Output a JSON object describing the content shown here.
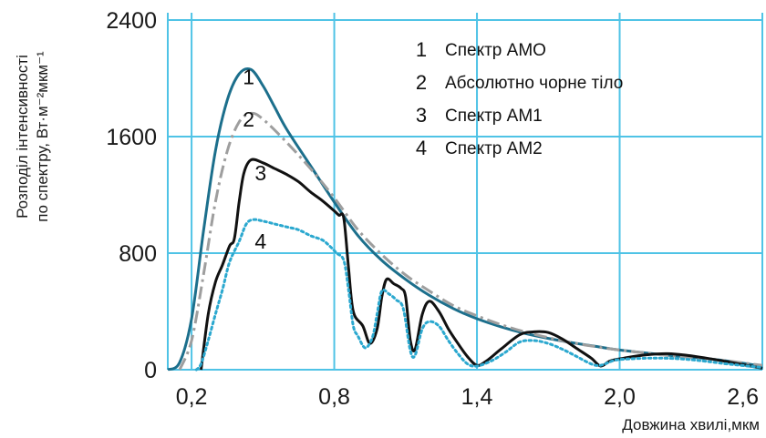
{
  "chart_data": {
    "type": "line",
    "xlabel": "Довжина хвилі,мкм",
    "ylabel_line1": "Розподіл інтенсивності",
    "ylabel_line2": "по спектру, Вт·м⁻²мкм⁻¹",
    "xlim": [
      0.1,
      2.6
    ],
    "ylim": [
      0,
      2400
    ],
    "x_ticks": [
      0.2,
      0.8,
      1.4,
      2.0,
      2.6
    ],
    "x_tick_labels": [
      "0,2",
      "0,8",
      "1,4",
      "2,0",
      "2,6"
    ],
    "y_ticks": [
      0,
      800,
      1600,
      2400
    ],
    "y_tick_labels": [
      "0",
      "800",
      "1600",
      "2400"
    ],
    "grid": true,
    "legend_position": "top-right",
    "legend": [
      {
        "num": "1",
        "text": "Спектр АМО"
      },
      {
        "num": "2",
        "text": "Абсолютно чорне тіло"
      },
      {
        "num": "3",
        "text": "Спектр АМ1"
      },
      {
        "num": "4",
        "text": "Спектр АМ2"
      }
    ],
    "series": [
      {
        "label": "1",
        "color": "#1c6f8c",
        "style": "solid",
        "label_at": [
          0.44,
          1960
        ],
        "points": [
          [
            0.1,
            0
          ],
          [
            0.15,
            50
          ],
          [
            0.2,
            350
          ],
          [
            0.25,
            950
          ],
          [
            0.3,
            1500
          ],
          [
            0.35,
            1850
          ],
          [
            0.4,
            2030
          ],
          [
            0.45,
            2060
          ],
          [
            0.5,
            1950
          ],
          [
            0.55,
            1800
          ],
          [
            0.6,
            1650
          ],
          [
            0.7,
            1400
          ],
          [
            0.8,
            1150
          ],
          [
            0.9,
            920
          ],
          [
            1.0,
            750
          ],
          [
            1.1,
            620
          ],
          [
            1.2,
            510
          ],
          [
            1.3,
            420
          ],
          [
            1.4,
            350
          ],
          [
            1.5,
            295
          ],
          [
            1.6,
            250
          ],
          [
            1.7,
            215
          ],
          [
            1.8,
            185
          ],
          [
            1.9,
            160
          ],
          [
            2.0,
            135
          ],
          [
            2.2,
            100
          ],
          [
            2.4,
            70
          ],
          [
            2.6,
            25
          ]
        ]
      },
      {
        "label": "2",
        "color": "#9e9e9e",
        "style": "dashdot",
        "label_at": [
          0.44,
          1670
        ],
        "points": [
          [
            0.15,
            0
          ],
          [
            0.2,
            200
          ],
          [
            0.25,
            650
          ],
          [
            0.3,
            1150
          ],
          [
            0.35,
            1500
          ],
          [
            0.4,
            1700
          ],
          [
            0.45,
            1760
          ],
          [
            0.5,
            1720
          ],
          [
            0.6,
            1560
          ],
          [
            0.7,
            1380
          ],
          [
            0.8,
            1180
          ],
          [
            0.9,
            960
          ],
          [
            1.0,
            790
          ],
          [
            1.1,
            650
          ],
          [
            1.2,
            540
          ],
          [
            1.3,
            440
          ],
          [
            1.4,
            370
          ],
          [
            1.5,
            310
          ],
          [
            1.6,
            260
          ],
          [
            1.7,
            220
          ],
          [
            1.8,
            185
          ],
          [
            1.9,
            158
          ],
          [
            2.0,
            135
          ],
          [
            2.2,
            98
          ],
          [
            2.4,
            70
          ],
          [
            2.6,
            30
          ]
        ]
      },
      {
        "label": "3",
        "color": "#111111",
        "style": "solid",
        "label_at": [
          0.49,
          1300
        ],
        "points": [
          [
            0.24,
            0
          ],
          [
            0.27,
            380
          ],
          [
            0.3,
            600
          ],
          [
            0.33,
            720
          ],
          [
            0.36,
            850
          ],
          [
            0.38,
            900
          ],
          [
            0.4,
            1150
          ],
          [
            0.42,
            1350
          ],
          [
            0.45,
            1440
          ],
          [
            0.5,
            1420
          ],
          [
            0.55,
            1380
          ],
          [
            0.6,
            1340
          ],
          [
            0.65,
            1290
          ],
          [
            0.7,
            1220
          ],
          [
            0.75,
            1160
          ],
          [
            0.8,
            1090
          ],
          [
            0.82,
            1060
          ],
          [
            0.84,
            1040
          ],
          [
            0.86,
            700
          ],
          [
            0.88,
            400
          ],
          [
            0.92,
            300
          ],
          [
            0.95,
            180
          ],
          [
            0.98,
            280
          ],
          [
            1.0,
            500
          ],
          [
            1.02,
            620
          ],
          [
            1.05,
            590
          ],
          [
            1.08,
            560
          ],
          [
            1.1,
            500
          ],
          [
            1.12,
            200
          ],
          [
            1.14,
            140
          ],
          [
            1.17,
            380
          ],
          [
            1.2,
            470
          ],
          [
            1.24,
            400
          ],
          [
            1.28,
            280
          ],
          [
            1.32,
            180
          ],
          [
            1.36,
            90
          ],
          [
            1.4,
            30
          ],
          [
            1.44,
            60
          ],
          [
            1.5,
            140
          ],
          [
            1.58,
            240
          ],
          [
            1.64,
            260
          ],
          [
            1.7,
            255
          ],
          [
            1.76,
            210
          ],
          [
            1.82,
            145
          ],
          [
            1.88,
            80
          ],
          [
            1.92,
            25
          ],
          [
            1.96,
            60
          ],
          [
            2.02,
            80
          ],
          [
            2.1,
            100
          ],
          [
            2.2,
            110
          ],
          [
            2.3,
            95
          ],
          [
            2.4,
            70
          ],
          [
            2.5,
            40
          ],
          [
            2.6,
            10
          ]
        ]
      },
      {
        "label": "4",
        "color": "#2ba8cf",
        "style": "dotted",
        "label_at": [
          0.49,
          830
        ],
        "points": [
          [
            0.22,
            0
          ],
          [
            0.24,
            40
          ],
          [
            0.27,
            200
          ],
          [
            0.3,
            380
          ],
          [
            0.33,
            550
          ],
          [
            0.36,
            740
          ],
          [
            0.4,
            880
          ],
          [
            0.43,
            1000
          ],
          [
            0.46,
            1030
          ],
          [
            0.5,
            1020
          ],
          [
            0.55,
            1000
          ],
          [
            0.6,
            980
          ],
          [
            0.65,
            960
          ],
          [
            0.7,
            920
          ],
          [
            0.75,
            890
          ],
          [
            0.78,
            850
          ],
          [
            0.81,
            800
          ],
          [
            0.84,
            750
          ],
          [
            0.86,
            550
          ],
          [
            0.88,
            300
          ],
          [
            0.9,
            230
          ],
          [
            0.93,
            150
          ],
          [
            0.96,
            220
          ],
          [
            0.98,
            380
          ],
          [
            1.0,
            540
          ],
          [
            1.03,
            520
          ],
          [
            1.06,
            480
          ],
          [
            1.09,
            420
          ],
          [
            1.12,
            130
          ],
          [
            1.14,
            100
          ],
          [
            1.17,
            280
          ],
          [
            1.2,
            330
          ],
          [
            1.24,
            300
          ],
          [
            1.28,
            200
          ],
          [
            1.32,
            110
          ],
          [
            1.36,
            40
          ],
          [
            1.4,
            25
          ],
          [
            1.46,
            60
          ],
          [
            1.52,
            120
          ],
          [
            1.58,
            190
          ],
          [
            1.64,
            200
          ],
          [
            1.7,
            180
          ],
          [
            1.76,
            140
          ],
          [
            1.82,
            90
          ],
          [
            1.88,
            40
          ],
          [
            1.92,
            30
          ],
          [
            1.98,
            65
          ],
          [
            2.05,
            75
          ],
          [
            2.15,
            80
          ],
          [
            2.25,
            75
          ],
          [
            2.35,
            60
          ],
          [
            2.45,
            40
          ],
          [
            2.6,
            15
          ]
        ]
      }
    ]
  }
}
